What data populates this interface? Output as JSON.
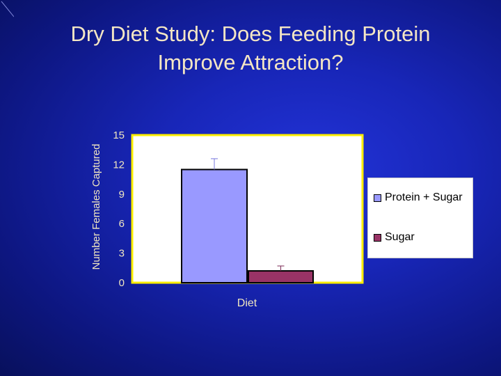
{
  "slide": {
    "title_line1": "Dry Diet Study:  Does Feeding Protein",
    "title_line2": "Improve Attraction?"
  },
  "chart_data": {
    "type": "bar",
    "title": "",
    "xlabel": "Diet",
    "ylabel": "Number Females Captured",
    "ylim": [
      0,
      15
    ],
    "yticks": [
      0,
      3,
      6,
      9,
      12,
      15
    ],
    "categories": [
      "Diet"
    ],
    "series": [
      {
        "name": "Protein + Sugar",
        "values": [
          11.5
        ],
        "error": [
          1.1
        ],
        "color": "#9999ff"
      },
      {
        "name": "Sugar",
        "values": [
          1.2
        ],
        "error": [
          0.5
        ],
        "color": "#993366"
      }
    ],
    "plot_border_color": "#ffee00",
    "plot_background": "#ffffff",
    "legend_position": "right"
  },
  "colors": {
    "title_text": "#f4e6c4",
    "axis_text": "#f0e6c0"
  }
}
